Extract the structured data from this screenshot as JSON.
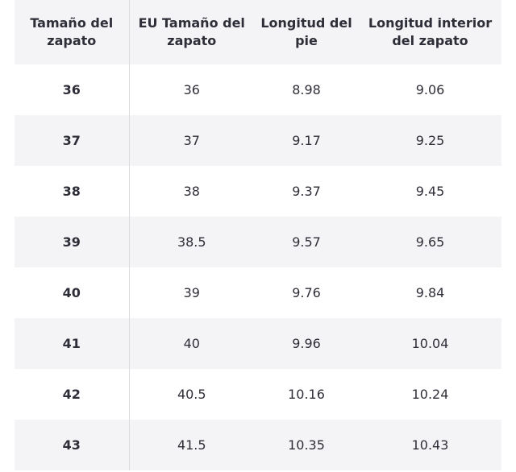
{
  "table": {
    "header": [
      "Tamaño del zapato",
      "EU Tamaño del zapato",
      "Longitud del pie",
      "Longitud interior del zapato"
    ],
    "rows": [
      [
        "36",
        "36",
        "8.98",
        "9.06"
      ],
      [
        "37",
        "37",
        "9.17",
        "9.25"
      ],
      [
        "38",
        "38",
        "9.37",
        "9.45"
      ],
      [
        "39",
        "38.5",
        "9.57",
        "9.65"
      ],
      [
        "40",
        "39",
        "9.76",
        "9.84"
      ],
      [
        "41",
        "40",
        "9.96",
        "10.04"
      ],
      [
        "42",
        "40.5",
        "10.16",
        "10.24"
      ],
      [
        "43",
        "41.5",
        "10.35",
        "10.43"
      ]
    ]
  }
}
